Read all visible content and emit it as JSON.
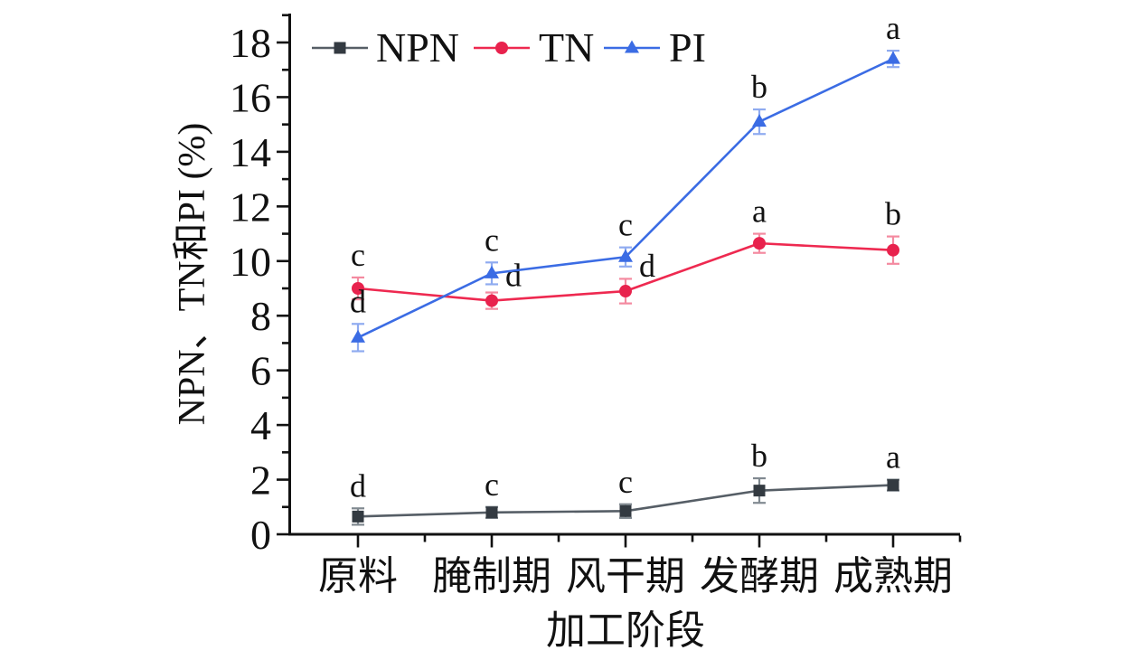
{
  "figure": {
    "background": "#ffffff",
    "axis_color": "#111111"
  },
  "axes": {
    "y_label": "NPN、TN和PI (%)",
    "x_label": "加工阶段",
    "y_tick_labels": [
      "0",
      "2",
      "4",
      "6",
      "8",
      "10",
      "12",
      "14",
      "16",
      "18"
    ],
    "ylim": [
      0,
      18
    ]
  },
  "legend": {
    "items": [
      {
        "label": "NPN",
        "marker": "square",
        "color": "#565e66"
      },
      {
        "label": "TN",
        "marker": "circle",
        "color": "#ee2950"
      },
      {
        "label": "PI",
        "marker": "triangle",
        "color": "#3b6ce4"
      }
    ]
  },
  "chart_data": {
    "type": "line",
    "title": "",
    "xlabel": "加工阶段",
    "ylabel": "NPN、TN和PI (%)",
    "categories": [
      "原料",
      "腌制期",
      "风干期",
      "发酵期",
      "成熟期"
    ],
    "ylim": [
      0,
      18
    ],
    "y_major_step": 2,
    "y_minor_step": 1,
    "grid": false,
    "legend_position": "top-left-inside",
    "error_bars": true,
    "series": [
      {
        "name": "NPN",
        "marker": "square",
        "line_color": "#565e66",
        "marker_color": "#333a41",
        "error_color": "#808990",
        "values": [
          0.65,
          0.8,
          0.85,
          1.6,
          1.8
        ],
        "errors": [
          0.3,
          0.2,
          0.25,
          0.45,
          0.2
        ],
        "sig_letters": [
          "d",
          "c",
          "c",
          "b",
          "a"
        ],
        "letter_offsets": [
          null,
          null,
          null,
          null,
          null
        ]
      },
      {
        "name": "TN",
        "marker": "circle",
        "line_color": "#ee2950",
        "marker_color": "#e8224d",
        "error_color": "#f48aa0",
        "values": [
          9.0,
          8.55,
          8.9,
          10.65,
          10.4
        ],
        "errors": [
          0.4,
          0.3,
          0.45,
          0.35,
          0.5
        ],
        "sig_letters": [
          "c",
          "d",
          "d",
          "a",
          "b"
        ],
        "letter_offsets": [
          null,
          {
            "dx": 24,
            "dy": -16
          },
          {
            "dx": 24,
            "dy": -16
          },
          null,
          null
        ]
      },
      {
        "name": "PI",
        "marker": "triangle",
        "line_color": "#3b6ce4",
        "marker_color": "#3b6ce4",
        "error_color": "#8fabf0",
        "values": [
          7.2,
          9.55,
          10.15,
          15.1,
          17.4
        ],
        "errors": [
          0.5,
          0.4,
          0.35,
          0.45,
          0.3
        ],
        "sig_letters": [
          "d",
          "c",
          "c",
          "b",
          "a"
        ],
        "letter_offsets": [
          null,
          null,
          null,
          null,
          null
        ]
      }
    ]
  }
}
